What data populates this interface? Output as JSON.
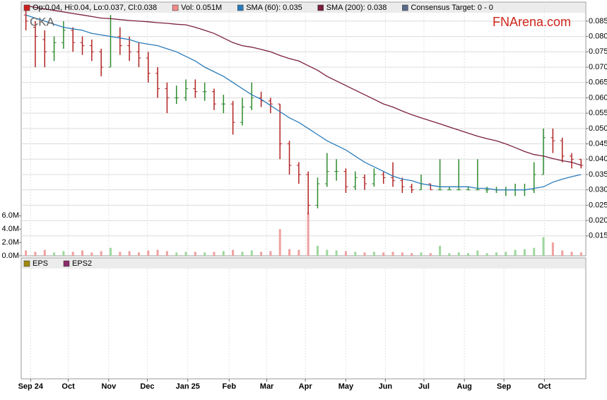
{
  "chart_data": {
    "type": "ohlc",
    "ticker": "CKA",
    "brand": "FNArena.com",
    "legend": [
      {
        "label": "Op:0.04, Hi:0.04, Lo:0.037, Cl:0.038",
        "color": "#cc1f1f"
      },
      {
        "label": "Vol: 0.051M",
        "color": "#f08a8a"
      },
      {
        "label": "SMA (60): 0.035",
        "color": "#2b7bb9"
      },
      {
        "label": "SMA (200): 0.038",
        "color": "#7a1f3d"
      },
      {
        "label": "Consensus Target: 0 - 0",
        "color": "#5a6a8a"
      }
    ],
    "lower_legend": [
      {
        "label": "EPS",
        "color": "#a08a10"
      },
      {
        "label": "EPS2",
        "color": "#8b2a6a"
      }
    ],
    "up_color": "#2e8b2e",
    "down_color": "#b22222",
    "xlim": [
      0,
      60
    ],
    "xticks": [
      {
        "value": 1,
        "label": "Sep 24"
      },
      {
        "value": 5,
        "label": "Oct"
      },
      {
        "value": 9.3,
        "label": "Nov"
      },
      {
        "value": 13.4,
        "label": "Dec"
      },
      {
        "value": 17.7,
        "label": "Jan 25"
      },
      {
        "value": 22.1,
        "label": "Feb"
      },
      {
        "value": 26.1,
        "label": "Mar"
      },
      {
        "value": 30.2,
        "label": "Apr"
      },
      {
        "value": 34.5,
        "label": "May"
      },
      {
        "value": 38.7,
        "label": "Jun"
      },
      {
        "value": 42.8,
        "label": "Jul"
      },
      {
        "value": 47.1,
        "label": "Aug"
      },
      {
        "value": 51.3,
        "label": "Sep"
      },
      {
        "value": 55.6,
        "label": "Oct"
      }
    ],
    "ylim": [
      0.0085,
      0.0912
    ],
    "yticks": [
      {
        "value": 0.015,
        "label": "0.015"
      },
      {
        "value": 0.02,
        "label": "0.020"
      },
      {
        "value": 0.025,
        "label": "0.025"
      },
      {
        "value": 0.03,
        "label": "0.030"
      },
      {
        "value": 0.035,
        "label": "0.035"
      },
      {
        "value": 0.04,
        "label": "0.040"
      },
      {
        "value": 0.045,
        "label": "0.045"
      },
      {
        "value": 0.05,
        "label": "0.050"
      },
      {
        "value": 0.055,
        "label": "0.055"
      },
      {
        "value": 0.06,
        "label": "0.060"
      },
      {
        "value": 0.065,
        "label": "0.065"
      },
      {
        "value": 0.07,
        "label": "0.070"
      },
      {
        "value": 0.075,
        "label": "0.075"
      },
      {
        "value": 0.08,
        "label": "0.080"
      },
      {
        "value": 0.085,
        "label": "0.085"
      }
    ],
    "vol_lim": [
      0,
      38
    ],
    "vol_ticks": [
      {
        "value": 0,
        "label": "0.0M"
      },
      {
        "value": 2,
        "label": "2.0M"
      },
      {
        "value": 4,
        "label": "4.0M"
      },
      {
        "value": 6,
        "label": "6.0M"
      }
    ],
    "ohlc": [
      [
        0.087,
        0.09,
        0.082,
        0.085
      ],
      [
        0.083,
        0.085,
        0.07,
        0.08
      ],
      [
        0.079,
        0.082,
        0.07,
        0.075
      ],
      [
        0.075,
        0.08,
        0.072,
        0.078
      ],
      [
        0.078,
        0.085,
        0.076,
        0.082
      ],
      [
        0.082,
        0.083,
        0.075,
        0.078
      ],
      [
        0.078,
        0.08,
        0.074,
        0.077
      ],
      [
        0.077,
        0.079,
        0.072,
        0.075
      ],
      [
        0.075,
        0.076,
        0.067,
        0.07
      ],
      [
        0.07,
        0.087,
        0.07,
        0.08
      ],
      [
        0.08,
        0.083,
        0.074,
        0.077
      ],
      [
        0.077,
        0.08,
        0.072,
        0.075
      ],
      [
        0.075,
        0.078,
        0.07,
        0.073
      ],
      [
        0.073,
        0.075,
        0.065,
        0.068
      ],
      [
        0.068,
        0.07,
        0.06,
        0.063
      ],
      [
        0.063,
        0.065,
        0.055,
        0.06
      ],
      [
        0.06,
        0.064,
        0.058,
        0.06
      ],
      [
        0.06,
        0.066,
        0.059,
        0.063
      ],
      [
        0.063,
        0.066,
        0.06,
        0.062
      ],
      [
        0.062,
        0.065,
        0.059,
        0.062
      ],
      [
        0.062,
        0.063,
        0.056,
        0.058
      ],
      [
        0.058,
        0.061,
        0.055,
        0.058
      ],
      [
        0.058,
        0.059,
        0.048,
        0.052
      ],
      [
        0.052,
        0.06,
        0.051,
        0.057
      ],
      [
        0.057,
        0.065,
        0.056,
        0.06
      ],
      [
        0.06,
        0.062,
        0.057,
        0.059
      ],
      [
        0.059,
        0.06,
        0.055,
        0.058
      ],
      [
        0.058,
        0.058,
        0.04,
        0.045
      ],
      [
        0.045,
        0.046,
        0.035,
        0.038
      ],
      [
        0.038,
        0.039,
        0.032,
        0.035
      ],
      [
        0.035,
        0.036,
        0.022,
        0.025
      ],
      [
        0.025,
        0.034,
        0.024,
        0.032
      ],
      [
        0.032,
        0.042,
        0.031,
        0.036
      ],
      [
        0.036,
        0.04,
        0.033,
        0.036
      ],
      [
        0.036,
        0.037,
        0.029,
        0.031
      ],
      [
        0.031,
        0.036,
        0.03,
        0.034
      ],
      [
        0.034,
        0.035,
        0.03,
        0.032
      ],
      [
        0.032,
        0.037,
        0.031,
        0.035
      ],
      [
        0.035,
        0.036,
        0.032,
        0.034
      ],
      [
        0.034,
        0.039,
        0.031,
        0.033
      ],
      [
        0.033,
        0.034,
        0.029,
        0.031
      ],
      [
        0.031,
        0.032,
        0.029,
        0.03
      ],
      [
        0.03,
        0.035,
        0.03,
        0.032
      ],
      [
        0.032,
        0.032,
        0.03,
        0.03
      ],
      [
        0.03,
        0.04,
        0.03,
        0.03
      ],
      [
        0.03,
        0.031,
        0.03,
        0.03
      ],
      [
        0.03,
        0.04,
        0.03,
        0.03
      ],
      [
        0.03,
        0.031,
        0.03,
        0.03
      ],
      [
        0.03,
        0.04,
        0.03,
        0.03
      ],
      [
        0.03,
        0.031,
        0.029,
        0.03
      ],
      [
        0.03,
        0.031,
        0.029,
        0.03
      ],
      [
        0.03,
        0.031,
        0.028,
        0.03
      ],
      [
        0.03,
        0.032,
        0.028,
        0.03
      ],
      [
        0.03,
        0.032,
        0.028,
        0.03
      ],
      [
        0.03,
        0.039,
        0.029,
        0.035
      ],
      [
        0.035,
        0.05,
        0.035,
        0.047
      ],
      [
        0.047,
        0.05,
        0.042,
        0.046
      ],
      [
        0.046,
        0.047,
        0.039,
        0.041
      ],
      [
        0.041,
        0.042,
        0.037,
        0.04
      ],
      [
        0.04,
        0.04,
        0.037,
        0.038
      ]
    ],
    "volume": [
      0.8,
      0.6,
      0.9,
      0.5,
      0.7,
      0.6,
      0.8,
      0.5,
      0.7,
      1.2,
      0.6,
      0.7,
      0.5,
      0.8,
      0.9,
      0.7,
      0.5,
      0.6,
      0.6,
      0.5,
      0.6,
      0.7,
      0.9,
      0.6,
      0.8,
      0.6,
      0.7,
      4.0,
      1.0,
      0.9,
      6.5,
      1.5,
      0.9,
      0.8,
      0.7,
      0.6,
      0.5,
      0.6,
      0.5,
      0.6,
      0.5,
      0.4,
      0.5,
      0.4,
      1.5,
      0.4,
      0.5,
      0.4,
      0.8,
      0.4,
      0.5,
      0.6,
      0.9,
      1.0,
      1.2,
      2.8,
      2.0,
      0.8,
      0.6,
      0.5
    ],
    "series": [
      {
        "name": "SMA (60)",
        "color": "#2b7bb9",
        "values": [
          0.087,
          0.086,
          0.085,
          0.084,
          0.083,
          0.0825,
          0.082,
          0.081,
          0.0805,
          0.08,
          0.0795,
          0.079,
          0.078,
          0.0775,
          0.077,
          0.076,
          0.075,
          0.0735,
          0.072,
          0.07,
          0.0685,
          0.067,
          0.065,
          0.063,
          0.061,
          0.0595,
          0.0575,
          0.0555,
          0.0535,
          0.052,
          0.05,
          0.048,
          0.046,
          0.0445,
          0.043,
          0.041,
          0.039,
          0.0375,
          0.036,
          0.0345,
          0.0335,
          0.033,
          0.032,
          0.0315,
          0.031,
          0.031,
          0.031,
          0.031,
          0.0305,
          0.0305,
          0.03,
          0.03,
          0.03,
          0.03,
          0.0305,
          0.031,
          0.0325,
          0.0335,
          0.0343,
          0.035
        ]
      },
      {
        "name": "SMA (200)",
        "color": "#7a1f3d",
        "values": [
          0.09,
          0.0895,
          0.089,
          0.0885,
          0.088,
          0.0875,
          0.087,
          0.0865,
          0.086,
          0.0858,
          0.0855,
          0.0852,
          0.085,
          0.0848,
          0.0845,
          0.0843,
          0.084,
          0.0838,
          0.083,
          0.082,
          0.081,
          0.0795,
          0.078,
          0.077,
          0.0765,
          0.0758,
          0.075,
          0.0738,
          0.0728,
          0.072,
          0.0705,
          0.069,
          0.067,
          0.0655,
          0.064,
          0.0625,
          0.061,
          0.0595,
          0.058,
          0.057,
          0.0557,
          0.0545,
          0.0535,
          0.0525,
          0.0515,
          0.0505,
          0.0495,
          0.0485,
          0.0475,
          0.0467,
          0.046,
          0.045,
          0.0438,
          0.0425,
          0.0415,
          0.041,
          0.0402,
          0.0395,
          0.039,
          0.038
        ]
      }
    ]
  }
}
